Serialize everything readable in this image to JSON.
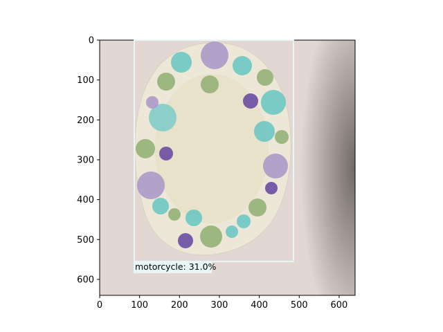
{
  "image_plot": {
    "image_size": [
      640,
      640
    ],
    "x_ticks": [
      "0",
      "100",
      "200",
      "300",
      "400",
      "500",
      "600"
    ],
    "y_ticks": [
      "0",
      "100",
      "200",
      "300",
      "400",
      "500",
      "600"
    ],
    "background_color": "#e2d7d3",
    "plate_color": "#ebe6d3",
    "detection": {
      "label": "motorcycle: 31.0%",
      "box_color": "#e8f6f6",
      "label_bg": "#e8f6f6"
    }
  }
}
